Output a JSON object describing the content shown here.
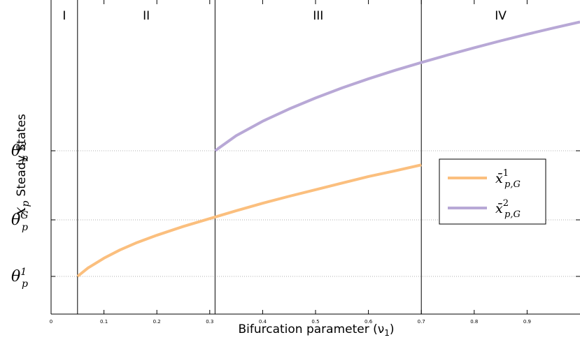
{
  "chart_data": {
    "type": "line",
    "title": "",
    "xlabel": "Bifurcation parameter (ν",
    "xlabel_sub": "1",
    "xlabel_end": ")",
    "ylabel_math": "x",
    "ylabel_math_sub": "p",
    "ylabel_text": "Steady States",
    "xlim": [
      0,
      1.0
    ],
    "ylim": [
      0,
      1.0
    ],
    "xticks": [
      0,
      0.1,
      0.2,
      0.3,
      0.4,
      0.5,
      0.6,
      0.7,
      0.8,
      0.9
    ],
    "xtick_labels": [
      "0",
      "0.1",
      "0.2",
      "0.3",
      "0.4",
      "0.5",
      "0.6",
      "0.7",
      "0.8",
      "0.9"
    ],
    "yticks": [
      {
        "value": 0.12,
        "base": "θ",
        "sub": "p",
        "sup": "1"
      },
      {
        "value": 0.3,
        "base": "θ",
        "sub": "p",
        "sup": "G"
      },
      {
        "value": 0.52,
        "base": "θ",
        "sub": "p",
        "sup": "2"
      }
    ],
    "vlines": [
      0.05,
      0.31,
      0.7
    ],
    "regions": [
      {
        "label": "I",
        "x": 0.025
      },
      {
        "label": "II",
        "x": 0.18
      },
      {
        "label": "III",
        "x": 0.505
      },
      {
        "label": "IV",
        "x": 0.85
      }
    ],
    "series": [
      {
        "name_base": "x̄",
        "name_sup": "1",
        "name_sub": "p,G",
        "color": "#fbbf7e",
        "x": [
          0.05,
          0.07,
          0.1,
          0.13,
          0.16,
          0.2,
          0.25,
          0.3,
          0.35,
          0.4,
          0.45,
          0.5,
          0.55,
          0.6,
          0.65,
          0.7
        ],
        "y": [
          0.12,
          0.147,
          0.178,
          0.204,
          0.226,
          0.251,
          0.279,
          0.304,
          0.329,
          0.353,
          0.375,
          0.396,
          0.417,
          0.438,
          0.456,
          0.475
        ]
      },
      {
        "name_base": "x̄",
        "name_sup": "2",
        "name_sub": "p,G",
        "color": "#b8a8d6",
        "x": [
          0.31,
          0.35,
          0.4,
          0.45,
          0.5,
          0.55,
          0.6,
          0.65,
          0.7,
          0.75,
          0.8,
          0.85,
          0.9,
          0.95,
          1.0
        ],
        "y": [
          0.52,
          0.568,
          0.614,
          0.653,
          0.688,
          0.72,
          0.749,
          0.776,
          0.801,
          0.825,
          0.848,
          0.87,
          0.891,
          0.911,
          0.93
        ]
      }
    ],
    "legend_position": "right",
    "grid": "horizontal-dotted-at-yticks"
  }
}
